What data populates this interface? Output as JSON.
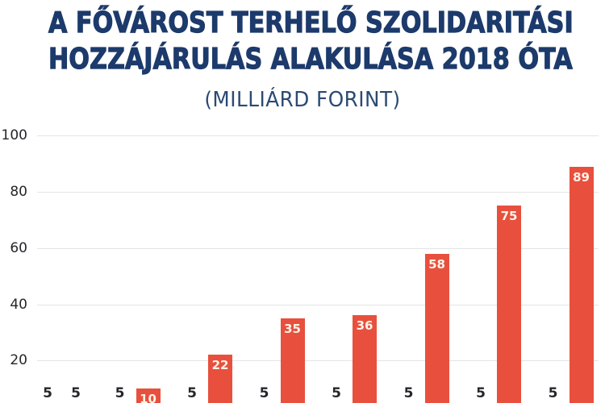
{
  "title": {
    "line1": "A FŐVÁROST TERHELŐ SZOLIDARITÁSI",
    "line2": "HOZZÁJÁRULÁS ALAKULÁSA 2018 ÓTA",
    "subtitle": "(MILLIÁRD FORINT)"
  },
  "colors": {
    "background": "#ffffff",
    "title_navy": "#1c3a6b",
    "subtitle_navy": "#2b4a74",
    "bar_red": "#e8503d",
    "bar_navy": "#1c3a6b",
    "gridline": "#e4e4e4",
    "axis_label": "#26262b",
    "bar_label_outside": "#26262b",
    "bar_label_inside": "#fcf3ea"
  },
  "chart_data": {
    "type": "bar",
    "title": "A FŐVÁROST TERHELŐ SZOLIDARITÁSI HOZZÁJÁRULÁS ALAKULÁSA 2018 ÓTA",
    "subtitle": "(MILLIÁRD FORINT)",
    "unit": "milliárd forint",
    "categories": [
      "",
      "",
      "",
      "",
      "",
      "",
      "",
      ""
    ],
    "series": [
      {
        "name": "navy-series",
        "color": "#1c3a6b",
        "values": [
          5,
          5,
          5,
          5,
          5,
          5,
          5,
          5
        ]
      },
      {
        "name": "red-series",
        "color": "#e8503d",
        "values": [
          5,
          10,
          22,
          35,
          36,
          58,
          75,
          89
        ]
      }
    ],
    "bar_value_labels": {
      "navy-series": [
        "5",
        "5",
        "5",
        "5",
        "5",
        "5",
        "5",
        "5"
      ],
      "red-series": [
        "5",
        "10",
        "22",
        "35",
        "36",
        "58",
        "75",
        "89"
      ]
    },
    "y_ticks": [
      20,
      40,
      60,
      80,
      100
    ],
    "ylim": [
      0,
      100
    ],
    "grid": true,
    "legend": "none",
    "x_axis_labels_visible": false
  }
}
